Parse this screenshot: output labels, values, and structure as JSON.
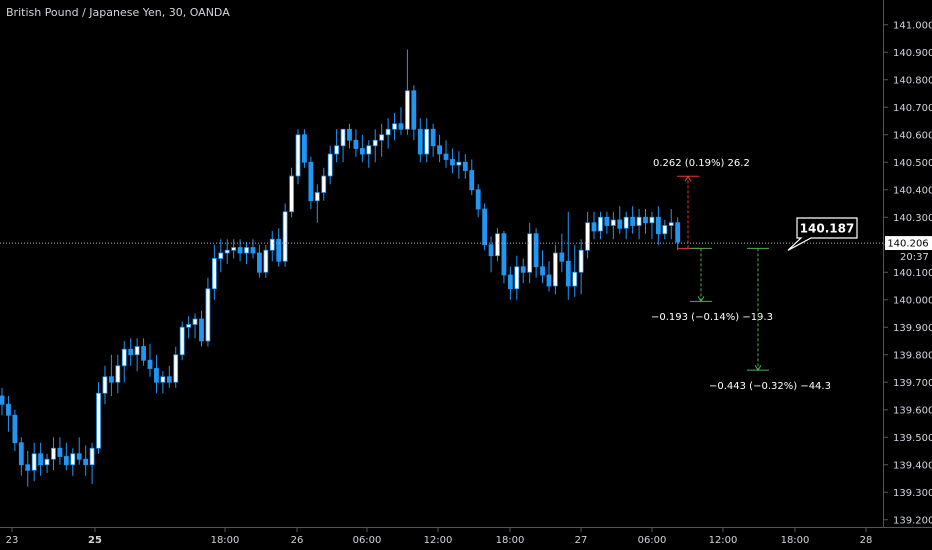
{
  "header": {
    "title": "British Pound / Japanese Yen, 30, OANDA"
  },
  "colors": {
    "background": "#000000",
    "candle_body": "#ffffff",
    "candle_border": "#2196f3",
    "wick": "#2196f3",
    "axis_line": "#555555",
    "axis_text": "#d1d4dc",
    "price_line": "#b2b5be",
    "measure_up": "#e53935",
    "measure_down": "#4caf50"
  },
  "chart_data": {
    "type": "candlestick",
    "title": "British Pound / Japanese Yen, 30, OANDA",
    "ylim": [
      139.17,
      141.09
    ],
    "y_ticks": [
      "141.000",
      "140.900",
      "140.800",
      "140.700",
      "140.600",
      "140.500",
      "140.400",
      "140.300",
      "140.200",
      "140.100",
      "140.000",
      "139.900",
      "139.800",
      "139.700",
      "139.600",
      "139.500",
      "139.400",
      "139.300",
      "139.200"
    ],
    "x_ticks": [
      "23",
      "25",
      "18:00",
      "26",
      "06:00",
      "12:00",
      "18:00",
      "27",
      "06:00",
      "12:00",
      "18:00",
      "28"
    ],
    "x_tick_bold": [
      false,
      true,
      false,
      false,
      false,
      false,
      false,
      false,
      false,
      false,
      false,
      false
    ],
    "current_price": "140.206",
    "countdown": "20:37",
    "callout_price": "140.187",
    "candles": [
      [
        139.65,
        139.68,
        139.58,
        139.62
      ],
      [
        139.62,
        139.65,
        139.52,
        139.58
      ],
      [
        139.58,
        139.6,
        139.45,
        139.48
      ],
      [
        139.48,
        139.5,
        139.36,
        139.4
      ],
      [
        139.4,
        139.45,
        139.32,
        139.38
      ],
      [
        139.38,
        139.48,
        139.34,
        139.44
      ],
      [
        139.44,
        139.48,
        139.36,
        139.4
      ],
      [
        139.4,
        139.44,
        139.37,
        139.42
      ],
      [
        139.42,
        139.5,
        139.38,
        139.46
      ],
      [
        139.46,
        139.5,
        139.4,
        139.43
      ],
      [
        139.43,
        139.48,
        139.38,
        139.4
      ],
      [
        139.4,
        139.46,
        139.36,
        139.44
      ],
      [
        139.44,
        139.5,
        139.4,
        139.42
      ],
      [
        139.42,
        139.47,
        139.36,
        139.4
      ],
      [
        139.4,
        139.48,
        139.33,
        139.46
      ],
      [
        139.46,
        139.7,
        139.44,
        139.66
      ],
      [
        139.66,
        139.76,
        139.62,
        139.72
      ],
      [
        139.72,
        139.8,
        139.65,
        139.7
      ],
      [
        139.7,
        139.8,
        139.66,
        139.76
      ],
      [
        139.76,
        139.85,
        139.7,
        139.82
      ],
      [
        139.82,
        139.86,
        139.76,
        139.8
      ],
      [
        139.8,
        139.86,
        139.74,
        139.83
      ],
      [
        139.83,
        139.86,
        139.76,
        139.78
      ],
      [
        139.78,
        139.84,
        139.72,
        139.75
      ],
      [
        139.75,
        139.8,
        139.66,
        139.7
      ],
      [
        139.7,
        139.74,
        139.66,
        139.72
      ],
      [
        139.72,
        139.76,
        139.68,
        139.7
      ],
      [
        139.7,
        139.83,
        139.68,
        139.8
      ],
      [
        139.8,
        139.92,
        139.78,
        139.9
      ],
      [
        139.9,
        139.94,
        139.86,
        139.91
      ],
      [
        139.91,
        139.95,
        139.86,
        139.93
      ],
      [
        139.93,
        139.96,
        139.83,
        139.85
      ],
      [
        139.85,
        140.08,
        139.83,
        140.04
      ],
      [
        140.04,
        140.2,
        140.0,
        140.15
      ],
      [
        140.15,
        140.22,
        140.1,
        140.17
      ],
      [
        140.17,
        140.22,
        140.13,
        140.18
      ],
      [
        140.18,
        140.22,
        140.15,
        140.19
      ],
      [
        140.19,
        140.22,
        140.14,
        140.17
      ],
      [
        140.17,
        140.21,
        140.13,
        140.19
      ],
      [
        140.19,
        140.22,
        140.15,
        140.17
      ],
      [
        140.17,
        140.2,
        140.08,
        140.1
      ],
      [
        140.1,
        140.2,
        140.08,
        140.18
      ],
      [
        140.18,
        140.25,
        140.14,
        140.22
      ],
      [
        140.22,
        140.26,
        140.12,
        140.14
      ],
      [
        140.14,
        140.35,
        140.12,
        140.32
      ],
      [
        140.32,
        140.48,
        140.3,
        140.45
      ],
      [
        140.45,
        140.62,
        140.42,
        140.6
      ],
      [
        140.6,
        140.62,
        140.48,
        140.5
      ],
      [
        140.5,
        140.52,
        140.33,
        140.36
      ],
      [
        140.36,
        140.42,
        140.28,
        140.39
      ],
      [
        140.39,
        140.48,
        140.36,
        140.45
      ],
      [
        140.45,
        140.56,
        140.42,
        140.53
      ],
      [
        140.53,
        140.62,
        140.5,
        140.56
      ],
      [
        140.56,
        140.62,
        140.5,
        140.62
      ],
      [
        140.62,
        140.64,
        140.55,
        140.58
      ],
      [
        140.58,
        140.62,
        140.52,
        140.55
      ],
      [
        140.55,
        140.6,
        140.5,
        140.53
      ],
      [
        140.53,
        140.58,
        140.48,
        140.56
      ],
      [
        140.56,
        140.62,
        140.5,
        140.58
      ],
      [
        140.58,
        140.64,
        140.52,
        140.6
      ],
      [
        140.6,
        140.66,
        140.55,
        140.62
      ],
      [
        140.62,
        140.68,
        140.58,
        140.64
      ],
      [
        140.64,
        140.7,
        140.6,
        140.62
      ],
      [
        140.62,
        140.91,
        140.6,
        140.76
      ],
      [
        140.76,
        140.78,
        140.58,
        140.62
      ],
      [
        140.62,
        140.66,
        140.5,
        140.53
      ],
      [
        140.53,
        140.66,
        140.5,
        140.62
      ],
      [
        140.62,
        140.64,
        140.52,
        140.56
      ],
      [
        140.56,
        140.6,
        140.5,
        140.53
      ],
      [
        140.53,
        140.58,
        140.48,
        140.51
      ],
      [
        140.51,
        140.55,
        140.46,
        140.49
      ],
      [
        140.49,
        140.54,
        140.44,
        140.5
      ],
      [
        140.5,
        140.53,
        140.44,
        140.47
      ],
      [
        140.47,
        140.51,
        140.38,
        140.4
      ],
      [
        140.4,
        140.42,
        140.3,
        140.33
      ],
      [
        140.33,
        140.35,
        140.18,
        140.2
      ],
      [
        140.2,
        140.23,
        140.1,
        140.16
      ],
      [
        140.16,
        140.26,
        140.14,
        140.24
      ],
      [
        140.24,
        140.25,
        140.06,
        140.09
      ],
      [
        140.09,
        140.12,
        140.0,
        140.04
      ],
      [
        140.04,
        140.16,
        140.0,
        140.12
      ],
      [
        140.12,
        140.15,
        140.06,
        140.1
      ],
      [
        140.1,
        140.28,
        140.06,
        140.24
      ],
      [
        140.24,
        140.26,
        140.08,
        140.12
      ],
      [
        140.12,
        140.18,
        140.06,
        140.09
      ],
      [
        140.09,
        140.14,
        140.03,
        140.05
      ],
      [
        140.05,
        140.2,
        140.02,
        140.17
      ],
      [
        140.17,
        140.24,
        140.1,
        140.14
      ],
      [
        140.14,
        140.32,
        140.0,
        140.05
      ],
      [
        140.05,
        140.2,
        140.01,
        140.1
      ],
      [
        140.1,
        140.22,
        140.02,
        140.18
      ],
      [
        140.18,
        140.32,
        140.15,
        140.28
      ],
      [
        140.28,
        140.32,
        140.22,
        140.25
      ],
      [
        140.25,
        140.32,
        140.22,
        140.3
      ],
      [
        140.3,
        140.32,
        140.24,
        140.27
      ],
      [
        140.27,
        140.32,
        140.22,
        140.29
      ],
      [
        140.29,
        140.34,
        140.24,
        140.26
      ],
      [
        140.26,
        140.32,
        140.22,
        140.3
      ],
      [
        140.3,
        140.34,
        140.24,
        140.27
      ],
      [
        140.27,
        140.33,
        140.22,
        140.3
      ],
      [
        140.3,
        140.33,
        140.24,
        140.28
      ],
      [
        140.28,
        140.32,
        140.22,
        140.3
      ],
      [
        140.3,
        140.34,
        140.2,
        140.24
      ],
      [
        140.24,
        140.29,
        140.22,
        140.27
      ],
      [
        140.27,
        140.33,
        140.22,
        140.28
      ],
      [
        140.28,
        140.3,
        140.18,
        140.21
      ]
    ],
    "measure_annotations": [
      {
        "label": "0.262 (0.19%) 26.2",
        "from": 140.187,
        "to": 140.449,
        "direction": "up"
      },
      {
        "label": "−0.193 (−0.14%) −19.3",
        "from": 140.187,
        "to": 139.994,
        "direction": "down"
      },
      {
        "label": "−0.443 (−0.32%) −44.3",
        "from": 140.187,
        "to": 139.744,
        "direction": "down"
      }
    ]
  }
}
